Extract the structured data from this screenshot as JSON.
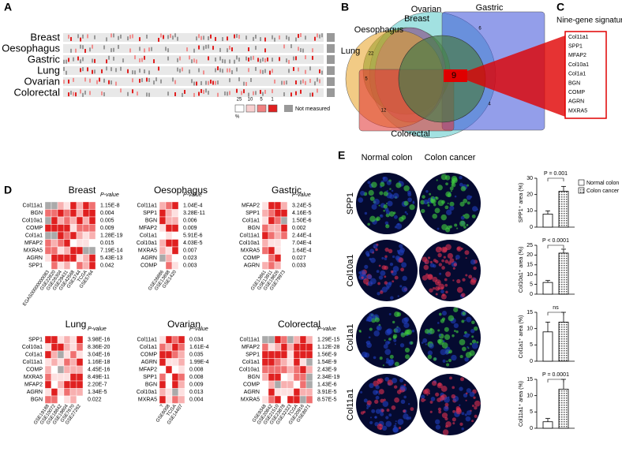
{
  "panel_a": {
    "label": "A",
    "rows": [
      "Breast",
      "Oesophagus",
      "Gastric",
      "Lung",
      "Ovarian",
      "Colorectal"
    ],
    "legend_levels": [
      "25",
      "10",
      "5",
      "1"
    ],
    "legend_unit": "%",
    "not_measured": "Not measured"
  },
  "panel_b": {
    "label": "B",
    "sets": [
      {
        "name": "Ovarian",
        "color": "#55c8c8"
      },
      {
        "name": "Gastric",
        "color": "#3a4fd8"
      },
      {
        "name": "Breast",
        "color": "#3a9a3a"
      },
      {
        "name": "Oesophagus",
        "color": "#b050c0"
      },
      {
        "name": "Lung",
        "color": "#e8a020"
      },
      {
        "name": "Colorectal",
        "color": "#e03030"
      }
    ],
    "center": "9",
    "counts": [
      "22",
      "5",
      "6",
      "12",
      "4"
    ]
  },
  "panel_c": {
    "label": "C",
    "title": "Nine-gene signature",
    "genes": [
      "Col11a1",
      "SPP1",
      "MFAP2",
      "Col10a1",
      "Col1a1",
      "BGN",
      "COMP",
      "AGRN",
      "MXRA5"
    ]
  },
  "panel_d": {
    "label": "D",
    "pvalue_heading": "P-value",
    "heatmaps": [
      {
        "title": "Breast",
        "genes": [
          "Col11a1",
          "BGN",
          "Col10a1",
          "COMP",
          "Col1a1",
          "MFAP2",
          "MXRA5",
          "AGRN",
          "SPP1"
        ],
        "pvalues": [
          "1.15E-8",
          "0.004",
          "0.005",
          "0.009",
          "1.28E-19",
          "0.015",
          "7.19E-14",
          "5.43E-13",
          "0.042"
        ],
        "datasets": [
          "EGAS00000000083",
          "GSE22820",
          "GSE26304",
          "GSE29431",
          "GSE42568",
          "GSE3744",
          "TCGA",
          "GSE5764"
        ]
      },
      {
        "title": "Oesophagus",
        "genes": [
          "Col11a1",
          "SPP1",
          "BGN",
          "MFAP2",
          "Col1a1",
          "Col10a1",
          "MXRA5",
          "AGRN",
          "COMP"
        ],
        "pvalues": [
          "1.04E-4",
          "3.28E-11",
          "0.006",
          "0.009",
          "5.91E-6",
          "4.03E-5",
          "0.007",
          "0.023",
          "0.003"
        ],
        "datasets": [
          "GSE26886",
          "GSE13898",
          "GSE1420"
        ]
      },
      {
        "title": "Gastric",
        "genes": [
          "MFAP2",
          "SPP1",
          "Col1a1",
          "BGN",
          "Col11a1",
          "Col10a1",
          "MXRA5",
          "COMP",
          "AGRN"
        ],
        "pvalues": [
          "3.24E-5",
          "4.16E-5",
          "1.50E-6",
          "0.002",
          "2.44E-4",
          "7.04E-4",
          "1.64E-4",
          "0.027",
          "0.033"
        ],
        "datasets": [
          "GSE13861",
          "GSE13911",
          "GSE19826",
          "GSE79973"
        ]
      },
      {
        "title": "Lung",
        "genes": [
          "SPP1",
          "Col10a1",
          "Col1a1",
          "Col11a1",
          "COMP",
          "MXRA5",
          "MFAP2",
          "AGRN",
          "BGN"
        ],
        "pvalues": [
          "3.98E-16",
          "8.36E-20",
          "3.04E-16",
          "1.16E-18",
          "4.45E-16",
          "8.49E-11",
          "2.20E-7",
          "1.34E-5",
          "0.022"
        ],
        "datasets": [
          "GSE19188",
          "GSE10072",
          "GSE18842",
          "GSE19804",
          "GSE7670",
          "GSE27262"
        ]
      },
      {
        "title": "Ovarian",
        "genes": [
          "Col11a1",
          "Col1a1",
          "COMP",
          "AGRN",
          "MFAP2",
          "SPP1",
          "BGN",
          "Col10a1",
          "MXRA5"
        ],
        "pvalues": [
          "0.034",
          "1.61E-4",
          "0.035",
          "1.99E-4",
          "0.008",
          "0.008",
          "0.009",
          "0.013",
          "0.004"
        ],
        "datasets": [
          "?",
          "GSE6008",
          "TCGA",
          "GSE14407"
        ]
      },
      {
        "title": "Colorectal",
        "genes": [
          "Col11a1",
          "MFAP2",
          "SPP1",
          "Col1a1",
          "Col10a1",
          "BGN",
          "COMP",
          "AGRN",
          "MXRA5"
        ],
        "pvalues": [
          "1.29E-15",
          "1.12E-28",
          "1.56E-9",
          "1.54E-9",
          "2.43E-9",
          "2.34E-19",
          "1.43E-6",
          "3.91E-5",
          "8.57E-5"
        ],
        "datasets": [
          "GSE9348",
          "GSE20842",
          "GSE21510",
          "GSE23878",
          "GSE32323",
          "TCGA",
          "GSE20916",
          "GSE8671"
        ]
      }
    ]
  },
  "panel_e": {
    "label": "E",
    "columns": [
      "Normal colon",
      "Colon cancer"
    ],
    "stains": [
      {
        "name": "SPP1",
        "color": "#40d040"
      },
      {
        "name": "Col10a1",
        "color": "#e03050"
      },
      {
        "name": "Col1a1",
        "color": "#40d040"
      },
      {
        "name": "Col11a1",
        "color": "#e03050"
      }
    ],
    "chart_data": {
      "type": "bar",
      "series": [
        {
          "name": "Normal colon",
          "color": "#ffffff",
          "values": [
            8,
            6,
            9,
            2
          ],
          "errors": [
            2,
            1,
            3,
            1
          ]
        },
        {
          "name": "Colon cancer",
          "color": "#888888",
          "values": [
            22,
            21,
            12,
            12
          ],
          "errors": [
            3,
            2,
            3,
            3
          ]
        }
      ],
      "charts": [
        {
          "ylabel": "SPP1⁺ area (%)",
          "ylim": [
            0,
            30
          ],
          "yticks": [
            0,
            10,
            20,
            30
          ],
          "annotation": "P = 0.001"
        },
        {
          "ylabel": "Col10a1⁺ area (%)",
          "ylim": [
            0,
            25
          ],
          "yticks": [
            0,
            5,
            10,
            15,
            20,
            25
          ],
          "annotation": "P < 0.0001"
        },
        {
          "ylabel": "Col1a1⁺ area (%)",
          "ylim": [
            0,
            15
          ],
          "yticks": [
            0,
            5,
            10,
            15
          ],
          "annotation": "ns"
        },
        {
          "ylabel": "Col11a1⁺ area (%)",
          "ylim": [
            0,
            15
          ],
          "yticks": [
            0,
            5,
            10,
            15
          ],
          "annotation": "P = 0.0001"
        }
      ]
    }
  }
}
